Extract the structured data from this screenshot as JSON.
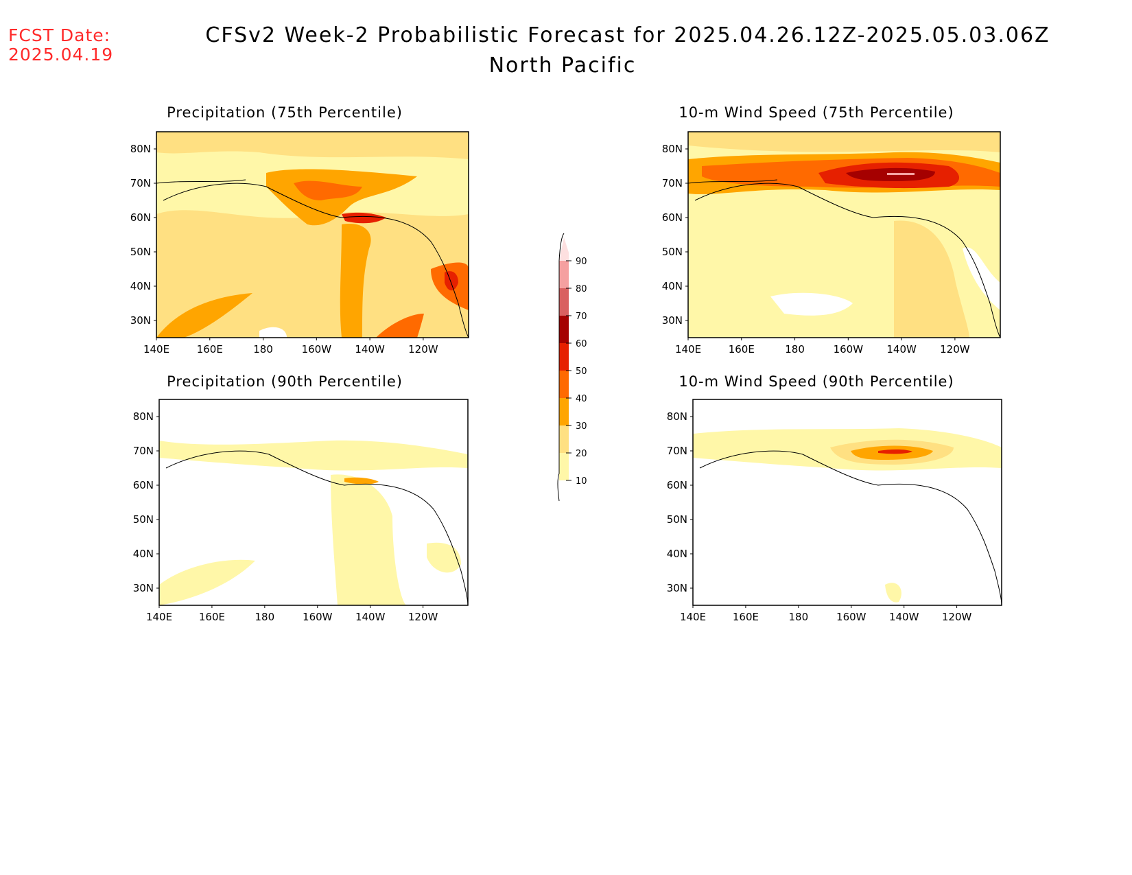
{
  "header": {
    "fcst_label": "FCST Date:",
    "fcst_date": "2025.04.19",
    "title": "CFSv2 Week-2 Probabilistic Forecast for 2025.04.26.12Z-2025.05.03.06Z",
    "subtitle": "North Pacific"
  },
  "axes": {
    "lat_ticks": [
      "80N",
      "70N",
      "60N",
      "50N",
      "40N",
      "30N"
    ],
    "lon_ticks": [
      "140E",
      "160E",
      "180",
      "160W",
      "140W",
      "120W"
    ]
  },
  "panels": [
    {
      "title": "Precipitation (75th Percentile)"
    },
    {
      "title": "10-m Wind Speed (75th Percentile)"
    },
    {
      "title": "Precipitation (90th Percentile)"
    },
    {
      "title": "10-m Wind Speed (90th Percentile)"
    }
  ],
  "colorbar": {
    "levels": [
      "10",
      "20",
      "30",
      "40",
      "50",
      "60",
      "70",
      "80",
      "90"
    ],
    "colors": [
      "#fff7a8",
      "#ffe082",
      "#ffa500",
      "#ff6a00",
      "#e62000",
      "#a50000",
      "#d96060",
      "#f5a0a0",
      "#fde0e0"
    ]
  }
}
